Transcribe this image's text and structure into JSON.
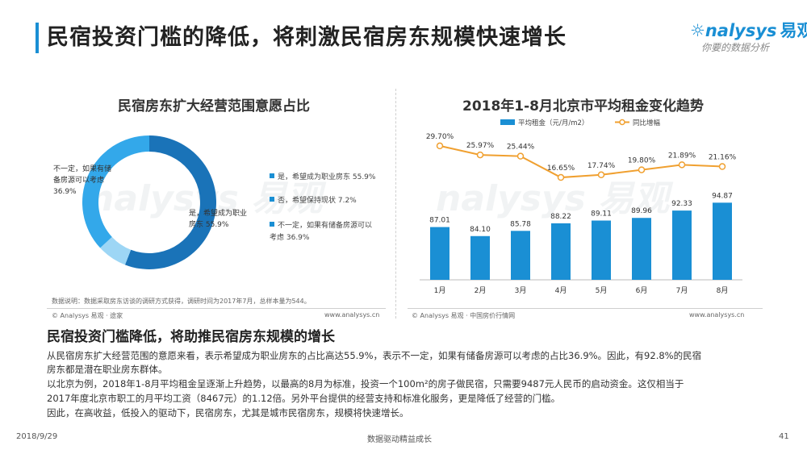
{
  "page": {
    "title": "民宿投资门槛的降低，将刺激民宿房东规模快速增长",
    "brand_name": "nalysys",
    "brand_cn": "易观",
    "brand_tagline": "你要的数据分析",
    "accent_color": "#1a8fd4",
    "line_color": "#f0a030"
  },
  "left_chart": {
    "note": "数据说明：数据采取房东访谈的调研方式获得，调研时间为2017年7月，总样本量为544。",
    "source": "© Analysys 易观 · 途家",
    "site": "www.analysys.cn",
    "slice_labels": {
      "yes": [
        "是，希望成为职业",
        "房东 55.9%"
      ],
      "no": "",
      "maybe": [
        "不一定，如果有储",
        "备房源可以考虑",
        "36.9%"
      ]
    }
  },
  "right_chart": {
    "source": "© Analysys 易观 · 中国房价行情网",
    "site": "www.analysys.cn"
  },
  "chart_data": [
    {
      "type": "pie",
      "title": "民宿房东扩大经营范围意愿占比",
      "categories": [
        "是，希望成为职业房东 55.9%",
        "否，希望保持现状 7.2%",
        "不一定，如果有储备房源可以考虑 36.9%"
      ],
      "legend_lines": [
        [
          "是，希望成为职业房东 55.9%"
        ],
        [
          "否，希望保持现状 7.2%"
        ],
        [
          "不一定，如果有储备房源可以",
          "考虑 36.9%"
        ]
      ],
      "values": [
        55.9,
        7.2,
        36.9
      ],
      "colors": [
        "#1a73b8",
        "#9dd6f5",
        "#33a8ea"
      ],
      "legend": "right"
    },
    {
      "type": "bar",
      "title": "2018年1-8月北京市平均租金变化趋势",
      "categories": [
        "1月",
        "2月",
        "3月",
        "4月",
        "5月",
        "6月",
        "7月",
        "8月"
      ],
      "series": [
        {
          "name": "平均租金（元/月/m2）",
          "type": "bar",
          "values": [
            87.01,
            84.1,
            85.78,
            88.22,
            89.11,
            89.96,
            92.33,
            94.87
          ],
          "labels": [
            "87.01",
            "84.10",
            "85.78",
            "88.22",
            "89.11",
            "89.96",
            "92.33",
            "94.87"
          ],
          "color": "#1a8fd4"
        },
        {
          "name": "同比增幅",
          "type": "line",
          "values": [
            29.7,
            25.97,
            25.44,
            16.65,
            17.74,
            19.8,
            21.89,
            21.16
          ],
          "labels": [
            "29.70%",
            "25.97%",
            "25.44%",
            "16.65%",
            "17.74%",
            "19.80%",
            "21.89%",
            "21.16%"
          ],
          "color": "#f0a030"
        }
      ],
      "legend": "top"
    }
  ],
  "summary": {
    "heading": "民宿投资门槛降低，将助推民宿房东规模的增长",
    "paragraphs": [
      "从民宿房东扩大经营范围的意愿来看，表示希望成为职业房东的占比高达55.9%，表示不一定，如果有储备房源可以考虑的占比36.9%。因此，有92.8%的民宿",
      "房东都是潜在职业房东群体。",
      "以北京为例，2018年1-8月平均租金呈逐渐上升趋势，以最高的8月为标准，投资一个100m²的房子做民宿，只需要9487元人民币的启动资金。这仅相当于",
      "2017年度北京市职工的月平均工资（8467元）的1.12倍。另外平台提供的经营支持和标准化服务，更是降低了经营的门槛。",
      "因此，在高收益，低投入的驱动下，民宿房东，尤其是城市民宿房东，规模将快速增长。"
    ]
  },
  "footer": {
    "date": "2018/9/29",
    "slogan": "数据驱动精益成长",
    "page_number": "41"
  }
}
